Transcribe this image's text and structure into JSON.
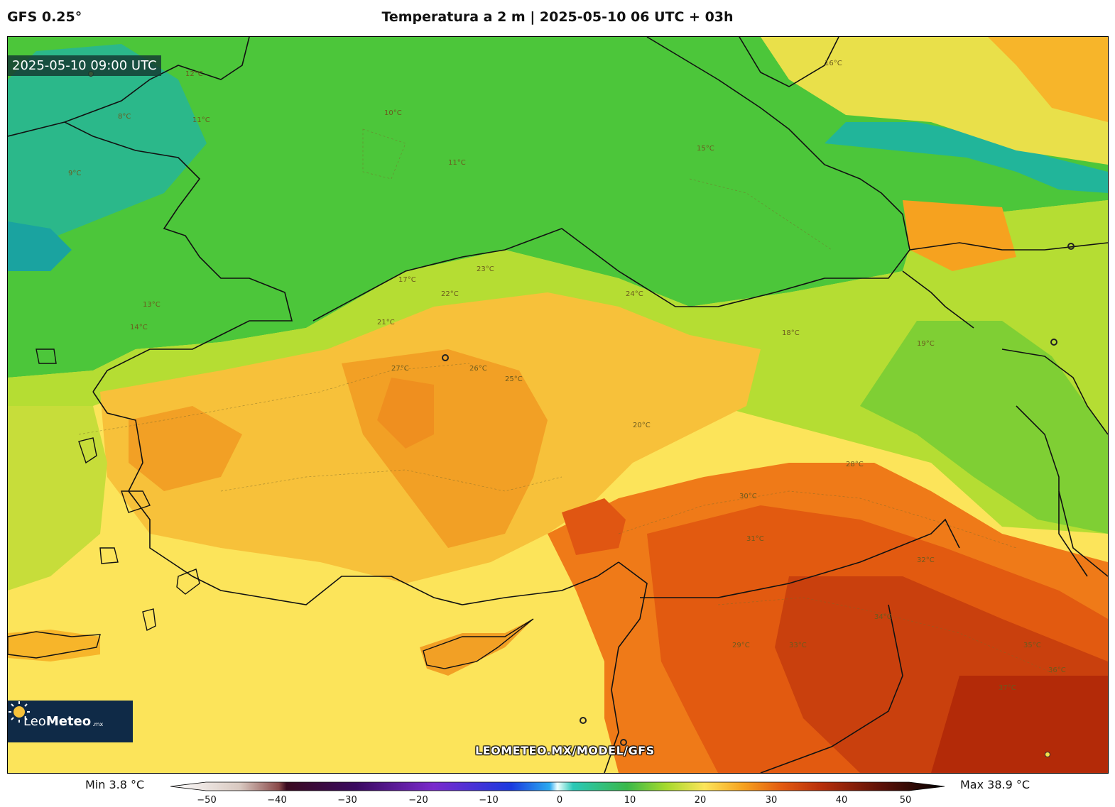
{
  "header": {
    "model": "GFS 0.25°",
    "title": "Temperatura a 2 m | 2025-05-10 06 UTC + 03h"
  },
  "map": {
    "valid_time": "2025-05-10 09:00 UTC",
    "watermark": "LEOMETEO.MX/MODEL/GFS",
    "logo": {
      "brand_light": "Leo",
      "brand_bold": "Meteo",
      "tld": ".mx"
    },
    "contour_labels": [
      "12°C",
      "11°C",
      "10°C",
      "9°C",
      "8°C",
      "13°C",
      "14°C",
      "15°C",
      "16°C",
      "17°C",
      "18°C",
      "19°C",
      "20°C",
      "21°C",
      "22°C",
      "23°C",
      "24°C",
      "25°C",
      "26°C",
      "27°C",
      "28°C",
      "29°C",
      "30°C",
      "31°C",
      "32°C",
      "33°C",
      "34°C",
      "35°C",
      "36°C",
      "37°C"
    ]
  },
  "colorbar": {
    "min_label": "Min 3.8 °C",
    "max_label": "Max 38.9 °C",
    "ticks": [
      "−50",
      "−40",
      "−30",
      "−20",
      "−10",
      "0",
      "10",
      "20",
      "30",
      "40",
      "50"
    ]
  },
  "colors": {
    "cold": "#2bb88a",
    "cool": "#4cc63a",
    "mild": "#a5d92c",
    "warm": "#fce45a",
    "hot": "#f6a21f",
    "very_hot": "#e85a10",
    "extreme": "#b8300a"
  }
}
